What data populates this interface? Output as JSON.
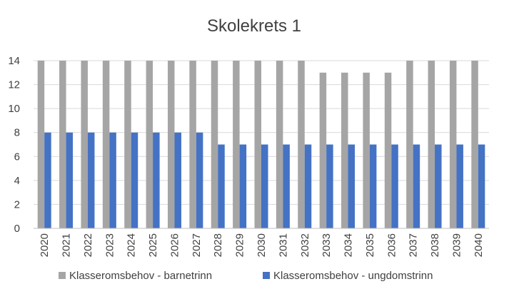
{
  "chart_data": {
    "type": "bar",
    "title": "Skolekrets 1",
    "xlabel": "",
    "ylabel": "",
    "ylim": [
      0,
      14
    ],
    "yticks": [
      0,
      2,
      4,
      6,
      8,
      10,
      12,
      14
    ],
    "grid": true,
    "legend_position": "bottom",
    "categories": [
      "2020",
      "2021",
      "2022",
      "2023",
      "2024",
      "2025",
      "2026",
      "2027",
      "2028",
      "2029",
      "2030",
      "2031",
      "2032",
      "2033",
      "2034",
      "2035",
      "2036",
      "2037",
      "2038",
      "2039",
      "2040"
    ],
    "series": [
      {
        "name": "Klasseromsbehov - barnetrinn",
        "color": "#a5a5a5",
        "values": [
          14,
          14,
          14,
          14,
          14,
          14,
          14,
          14,
          14,
          14,
          14,
          14,
          14,
          13,
          13,
          13,
          13,
          14,
          14,
          14,
          14
        ]
      },
      {
        "name": "Klasseromsbehov - ungdomstrinn",
        "color": "#4472c4",
        "values": [
          8,
          8,
          8,
          8,
          8,
          8,
          8,
          8,
          7,
          7,
          7,
          7,
          7,
          7,
          7,
          7,
          7,
          7,
          7,
          7,
          7
        ]
      }
    ]
  }
}
